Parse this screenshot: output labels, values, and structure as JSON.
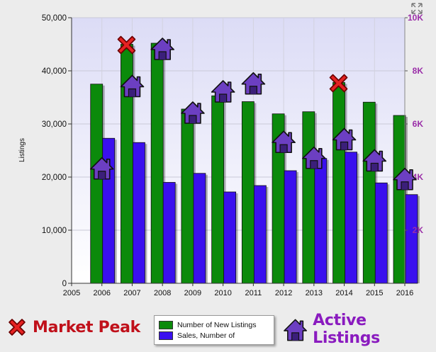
{
  "chart_data": {
    "type": "bar",
    "ylabel": "Listings",
    "x_ticks": [
      "2005",
      "2006",
      "2007",
      "2008",
      "2009",
      "2010",
      "2011",
      "2012",
      "2013",
      "2014",
      "2015",
      "2016"
    ],
    "categories": [
      "2006",
      "2007",
      "2008",
      "2009",
      "2010",
      "2011",
      "2012",
      "2013",
      "2014",
      "2015",
      "2016"
    ],
    "ylim": [
      0,
      50000
    ],
    "y_ticks": [
      "0",
      "10,000",
      "20,000",
      "30,000",
      "40,000",
      "50,000"
    ],
    "y2lim": [
      0,
      10000
    ],
    "y2_ticks": [
      "2K",
      "4K",
      "6K",
      "8K",
      "10K"
    ],
    "grid": true,
    "series": [
      {
        "name": "Number of New Listings",
        "color": "#0b8a0b",
        "values": [
          37500,
          45000,
          45200,
          32800,
          35300,
          34200,
          31900,
          32300,
          37800,
          34100,
          31600
        ]
      },
      {
        "name": "Sales, Number of",
        "color": "#3a10ee",
        "values": [
          27300,
          26500,
          19000,
          20700,
          17200,
          18400,
          21200,
          23500,
          24700,
          18900,
          16700
        ]
      }
    ],
    "active_listings": {
      "name": "Active Listings",
      "axis": "right",
      "values": [
        4300,
        7400,
        8800,
        6400,
        7200,
        7500,
        5300,
        4700,
        5400,
        4600,
        3900
      ]
    },
    "market_peaks": {
      "name": "Market Peak",
      "categories": [
        "2007",
        "2014"
      ]
    }
  },
  "legend": {
    "items": [
      {
        "label": "Number of New Listings",
        "color": "#0b8a0b"
      },
      {
        "label": "Sales, Number of",
        "color": "#3a10ee"
      }
    ]
  },
  "key": {
    "market_peak_label": "Market Peak",
    "market_peak_color": "#c0101a",
    "active_listings_label": "Active Listings",
    "active_listings_color": "#8a1bbf"
  },
  "colors": {
    "plot_bg_top": "#dcdcf6",
    "plot_bg_bottom": "#ffffff",
    "right_axis_color": "#9a2ea8",
    "house_fill": "#6c3fc2"
  }
}
